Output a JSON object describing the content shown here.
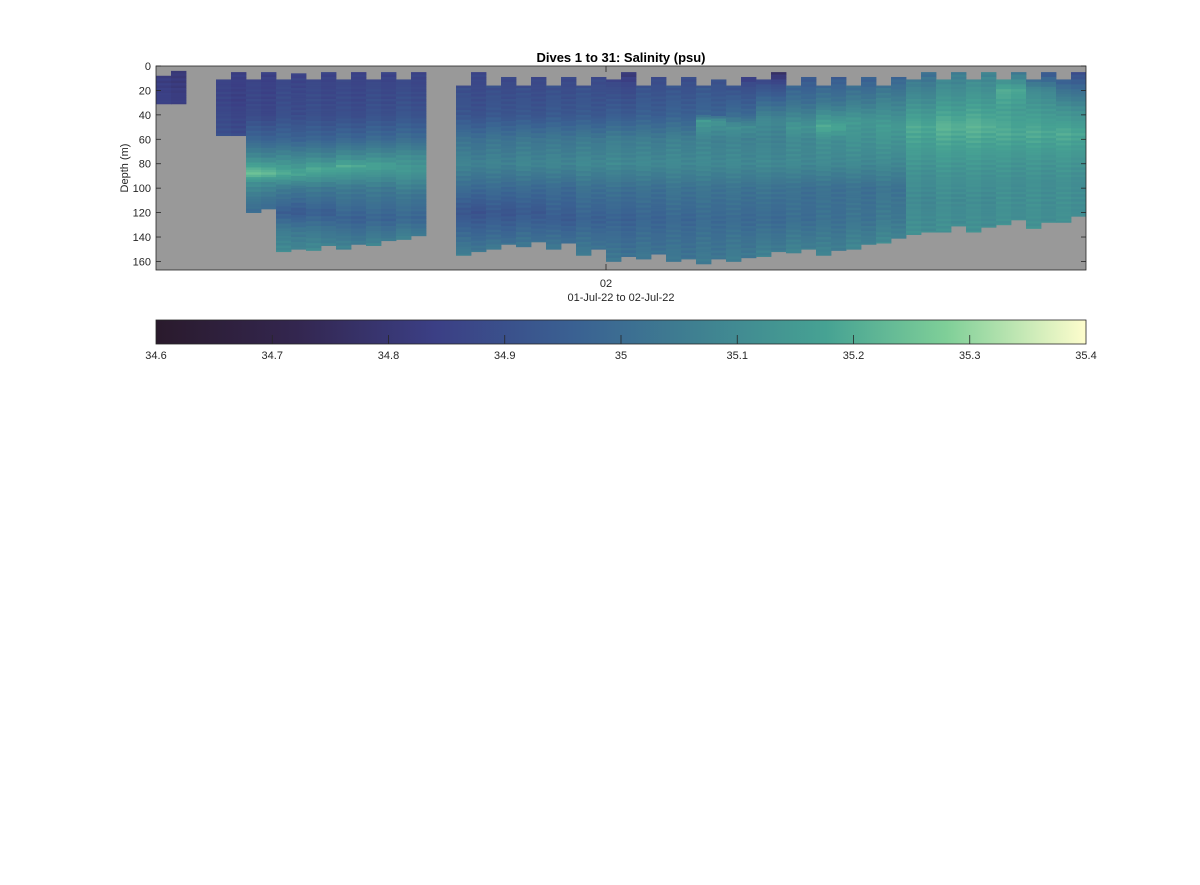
{
  "chart_data": {
    "type": "heatmap",
    "title": "Dives 1 to 31: Salinity (psu)",
    "ylabel": "Depth (m)",
    "xlabel": "01-Jul-22 to 02-Jul-22",
    "x_tick_labels": [
      "02"
    ],
    "x_tick_dive_position": 15.5,
    "y_range": [
      0,
      167
    ],
    "y_reversed": true,
    "y_ticks": [
      0,
      20,
      40,
      60,
      80,
      100,
      120,
      140,
      160
    ],
    "dive_range": [
      1,
      31
    ],
    "background_color": "#999999",
    "colormap": "haline-like (dark purple → blue → teal → green → pale yellow)",
    "colorbar": {
      "orientation": "horizontal",
      "min": 34.6,
      "max": 35.4,
      "ticks": [
        34.6,
        34.7,
        34.8,
        34.9,
        35,
        35.1,
        35.2,
        35.3,
        35.4
      ],
      "tick_labels": [
        "34.6",
        "34.7",
        "34.8",
        "34.9",
        "35",
        "35.1",
        "35.2",
        "35.3",
        "35.4"
      ]
    },
    "dives": [
      {
        "dive": 1,
        "down_top": 8,
        "down_bot": 31,
        "up_top": 4,
        "up_bot": 31,
        "profile": [
          [
            0,
            34.82
          ],
          [
            20,
            34.84
          ],
          [
            31,
            34.85
          ]
        ]
      },
      {
        "dive": 2,
        "down_top": null,
        "down_bot": null,
        "up_top": null,
        "up_bot": null,
        "profile": []
      },
      {
        "dive": 3,
        "down_top": 11,
        "down_bot": 57,
        "up_top": 5,
        "up_bot": 57,
        "profile": [
          [
            0,
            34.85
          ],
          [
            30,
            34.86
          ],
          [
            57,
            34.9
          ]
        ]
      },
      {
        "dive": 4,
        "down_top": 11,
        "down_bot": 120,
        "up_top": 5,
        "up_bot": 117,
        "profile": [
          [
            0,
            34.85
          ],
          [
            40,
            34.88
          ],
          [
            60,
            34.98
          ],
          [
            75,
            35.1
          ],
          [
            88,
            35.25
          ],
          [
            95,
            35.12
          ],
          [
            110,
            35.03
          ],
          [
            120,
            35.0
          ]
        ]
      },
      {
        "dive": 5,
        "down_top": 11,
        "down_bot": 152,
        "up_top": 6,
        "up_bot": 150,
        "profile": [
          [
            0,
            34.86
          ],
          [
            40,
            34.9
          ],
          [
            60,
            34.98
          ],
          [
            75,
            35.1
          ],
          [
            88,
            35.2
          ],
          [
            100,
            35.05
          ],
          [
            120,
            34.95
          ],
          [
            135,
            35.05
          ],
          [
            152,
            35.1
          ]
        ]
      },
      {
        "dive": 6,
        "down_top": 11,
        "down_bot": 151,
        "up_top": 5,
        "up_bot": 147,
        "profile": [
          [
            0,
            34.86
          ],
          [
            40,
            34.9
          ],
          [
            60,
            34.98
          ],
          [
            75,
            35.1
          ],
          [
            85,
            35.2
          ],
          [
            100,
            35.05
          ],
          [
            120,
            34.96
          ],
          [
            135,
            35.04
          ],
          [
            151,
            35.1
          ]
        ]
      },
      {
        "dive": 7,
        "down_top": 11,
        "down_bot": 150,
        "up_top": 5,
        "up_bot": 146,
        "profile": [
          [
            0,
            34.86
          ],
          [
            40,
            34.9
          ],
          [
            60,
            34.99
          ],
          [
            75,
            35.12
          ],
          [
            82,
            35.2
          ],
          [
            100,
            35.05
          ],
          [
            125,
            34.97
          ],
          [
            150,
            35.08
          ]
        ]
      },
      {
        "dive": 8,
        "down_top": 11,
        "down_bot": 147,
        "up_top": 5,
        "up_bot": 143,
        "profile": [
          [
            0,
            34.86
          ],
          [
            40,
            34.91
          ],
          [
            60,
            35.0
          ],
          [
            75,
            35.12
          ],
          [
            82,
            35.18
          ],
          [
            100,
            35.05
          ],
          [
            125,
            34.98
          ],
          [
            147,
            35.08
          ]
        ]
      },
      {
        "dive": 9,
        "down_top": 11,
        "down_bot": 142,
        "up_top": 5,
        "up_bot": 139,
        "profile": [
          [
            0,
            34.86
          ],
          [
            40,
            34.92
          ],
          [
            60,
            35.01
          ],
          [
            75,
            35.12
          ],
          [
            85,
            35.15
          ],
          [
            105,
            35.04
          ],
          [
            125,
            34.99
          ],
          [
            142,
            35.08
          ]
        ]
      },
      {
        "dive": 10,
        "down_top": null,
        "down_bot": null,
        "up_top": null,
        "up_bot": null,
        "profile": []
      },
      {
        "dive": 11,
        "down_top": 16,
        "down_bot": 155,
        "up_top": 5,
        "up_bot": 152,
        "profile": [
          [
            0,
            34.87
          ],
          [
            40,
            34.92
          ],
          [
            60,
            35.02
          ],
          [
            80,
            35.08
          ],
          [
            100,
            35.0
          ],
          [
            120,
            34.92
          ],
          [
            140,
            35.0
          ],
          [
            155,
            35.06
          ]
        ]
      },
      {
        "dive": 12,
        "down_top": 16,
        "down_bot": 150,
        "up_top": 9,
        "up_bot": 146,
        "profile": [
          [
            0,
            34.87
          ],
          [
            40,
            34.93
          ],
          [
            60,
            35.03
          ],
          [
            80,
            35.08
          ],
          [
            100,
            35.0
          ],
          [
            120,
            34.93
          ],
          [
            140,
            35.0
          ],
          [
            150,
            35.05
          ]
        ]
      },
      {
        "dive": 13,
        "down_top": 16,
        "down_bot": 148,
        "up_top": 9,
        "up_bot": 144,
        "profile": [
          [
            0,
            34.87
          ],
          [
            40,
            34.93
          ],
          [
            60,
            35.04
          ],
          [
            80,
            35.09
          ],
          [
            100,
            35.0
          ],
          [
            120,
            34.94
          ],
          [
            148,
            35.04
          ]
        ]
      },
      {
        "dive": 14,
        "down_top": 16,
        "down_bot": 150,
        "up_top": 9,
        "up_bot": 145,
        "profile": [
          [
            0,
            34.87
          ],
          [
            40,
            34.94
          ],
          [
            60,
            35.04
          ],
          [
            80,
            35.09
          ],
          [
            100,
            35.0
          ],
          [
            125,
            34.95
          ],
          [
            150,
            35.04
          ]
        ]
      },
      {
        "dive": 15,
        "down_top": 16,
        "down_bot": 155,
        "up_top": 9,
        "up_bot": 150,
        "profile": [
          [
            0,
            34.88
          ],
          [
            40,
            34.94
          ],
          [
            60,
            35.05
          ],
          [
            80,
            35.1
          ],
          [
            100,
            35.02
          ],
          [
            125,
            34.97
          ],
          [
            155,
            35.05
          ]
        ]
      },
      {
        "dive": 16,
        "down_top": 11,
        "down_bot": 160,
        "up_top": 5,
        "up_bot": 156,
        "profile": [
          [
            0,
            34.78
          ],
          [
            15,
            34.88
          ],
          [
            40,
            34.95
          ],
          [
            60,
            35.06
          ],
          [
            80,
            35.1
          ],
          [
            100,
            35.02
          ],
          [
            125,
            34.97
          ],
          [
            160,
            35.04
          ]
        ]
      },
      {
        "dive": 17,
        "down_top": 16,
        "down_bot": 158,
        "up_top": 9,
        "up_bot": 154,
        "profile": [
          [
            0,
            34.88
          ],
          [
            40,
            34.96
          ],
          [
            60,
            35.06
          ],
          [
            80,
            35.1
          ],
          [
            100,
            35.02
          ],
          [
            125,
            34.98
          ],
          [
            158,
            35.04
          ]
        ]
      },
      {
        "dive": 18,
        "down_top": 16,
        "down_bot": 160,
        "up_top": 9,
        "up_bot": 158,
        "profile": [
          [
            0,
            34.88
          ],
          [
            40,
            34.97
          ],
          [
            60,
            35.07
          ],
          [
            80,
            35.1
          ],
          [
            100,
            35.03
          ],
          [
            125,
            34.99
          ],
          [
            160,
            35.04
          ]
        ]
      },
      {
        "dive": 19,
        "down_top": 16,
        "down_bot": 162,
        "up_top": 11,
        "up_bot": 158,
        "profile": [
          [
            0,
            34.89
          ],
          [
            40,
            34.98
          ],
          [
            45,
            35.15
          ],
          [
            60,
            35.08
          ],
          [
            80,
            35.1
          ],
          [
            100,
            35.03
          ],
          [
            125,
            35.0
          ],
          [
            162,
            35.05
          ]
        ]
      },
      {
        "dive": 20,
        "down_top": 16,
        "down_bot": 160,
        "up_top": 9,
        "up_bot": 157,
        "profile": [
          [
            0,
            34.74
          ],
          [
            15,
            34.9
          ],
          [
            40,
            35.0
          ],
          [
            50,
            35.12
          ],
          [
            60,
            35.08
          ],
          [
            80,
            35.1
          ],
          [
            100,
            35.03
          ],
          [
            125,
            35.0
          ],
          [
            160,
            35.06
          ]
        ]
      },
      {
        "dive": 21,
        "down_top": 11,
        "down_bot": 156,
        "up_top": 5,
        "up_bot": 152,
        "profile": [
          [
            0,
            34.72
          ],
          [
            15,
            34.9
          ],
          [
            30,
            35.0
          ],
          [
            45,
            35.1
          ],
          [
            60,
            35.08
          ],
          [
            80,
            35.1
          ],
          [
            100,
            35.03
          ],
          [
            125,
            35.0
          ],
          [
            156,
            35.07
          ]
        ]
      },
      {
        "dive": 22,
        "down_top": 16,
        "down_bot": 153,
        "up_top": 9,
        "up_bot": 150,
        "profile": [
          [
            0,
            34.91
          ],
          [
            30,
            35.02
          ],
          [
            50,
            35.14
          ],
          [
            60,
            35.1
          ],
          [
            80,
            35.1
          ],
          [
            100,
            35.02
          ],
          [
            125,
            35.01
          ],
          [
            153,
            35.08
          ]
        ]
      },
      {
        "dive": 23,
        "down_top": 16,
        "down_bot": 155,
        "up_top": 9,
        "up_bot": 151,
        "profile": [
          [
            0,
            34.92
          ],
          [
            30,
            35.04
          ],
          [
            50,
            35.2
          ],
          [
            60,
            35.12
          ],
          [
            80,
            35.1
          ],
          [
            100,
            35.02
          ],
          [
            125,
            35.02
          ],
          [
            155,
            35.08
          ]
        ]
      },
      {
        "dive": 24,
        "down_top": 16,
        "down_bot": 150,
        "up_top": 9,
        "up_bot": 146,
        "profile": [
          [
            0,
            34.93
          ],
          [
            30,
            35.06
          ],
          [
            45,
            35.15
          ],
          [
            60,
            35.13
          ],
          [
            80,
            35.1
          ],
          [
            100,
            35.02
          ],
          [
            125,
            35.03
          ],
          [
            150,
            35.09
          ]
        ]
      },
      {
        "dive": 25,
        "down_top": 16,
        "down_bot": 145,
        "up_top": 9,
        "up_bot": 141,
        "profile": [
          [
            0,
            34.95
          ],
          [
            30,
            35.08
          ],
          [
            50,
            35.16
          ],
          [
            60,
            35.14
          ],
          [
            80,
            35.1
          ],
          [
            100,
            35.03
          ],
          [
            125,
            35.05
          ],
          [
            145,
            35.1
          ]
        ]
      },
      {
        "dive": 26,
        "down_top": 11,
        "down_bot": 138,
        "up_top": 5,
        "up_bot": 136,
        "profile": [
          [
            0,
            35.0
          ],
          [
            30,
            35.12
          ],
          [
            50,
            35.2
          ],
          [
            70,
            35.16
          ],
          [
            90,
            35.12
          ],
          [
            110,
            35.1
          ],
          [
            138,
            35.12
          ]
        ]
      },
      {
        "dive": 27,
        "down_top": 11,
        "down_bot": 136,
        "up_top": 5,
        "up_bot": 131,
        "profile": [
          [
            0,
            35.05
          ],
          [
            30,
            35.15
          ],
          [
            50,
            35.22
          ],
          [
            70,
            35.17
          ],
          [
            90,
            35.13
          ],
          [
            110,
            35.11
          ],
          [
            136,
            35.12
          ]
        ]
      },
      {
        "dive": 28,
        "down_top": 11,
        "down_bot": 136,
        "up_top": 5,
        "up_bot": 132,
        "profile": [
          [
            0,
            35.07
          ],
          [
            30,
            35.16
          ],
          [
            50,
            35.22
          ],
          [
            70,
            35.17
          ],
          [
            90,
            35.13
          ],
          [
            110,
            35.11
          ],
          [
            136,
            35.12
          ]
        ]
      },
      {
        "dive": 29,
        "down_top": 11,
        "down_bot": 130,
        "up_top": 5,
        "up_bot": 126,
        "profile": [
          [
            0,
            35.0
          ],
          [
            20,
            35.2
          ],
          [
            35,
            35.17
          ],
          [
            55,
            35.2
          ],
          [
            75,
            35.15
          ],
          [
            95,
            35.12
          ],
          [
            130,
            35.12
          ]
        ]
      },
      {
        "dive": 30,
        "down_top": 11,
        "down_bot": 133,
        "up_top": 5,
        "up_bot": 128,
        "profile": [
          [
            0,
            34.88
          ],
          [
            20,
            35.1
          ],
          [
            35,
            35.15
          ],
          [
            55,
            35.2
          ],
          [
            75,
            35.15
          ],
          [
            95,
            35.12
          ],
          [
            133,
            35.12
          ]
        ]
      },
      {
        "dive": 31,
        "down_top": 11,
        "down_bot": 128,
        "up_top": 5,
        "up_bot": 123,
        "profile": [
          [
            0,
            34.86
          ],
          [
            20,
            35.02
          ],
          [
            35,
            35.12
          ],
          [
            55,
            35.2
          ],
          [
            75,
            35.15
          ],
          [
            95,
            35.12
          ],
          [
            128,
            35.12
          ]
        ]
      }
    ]
  }
}
